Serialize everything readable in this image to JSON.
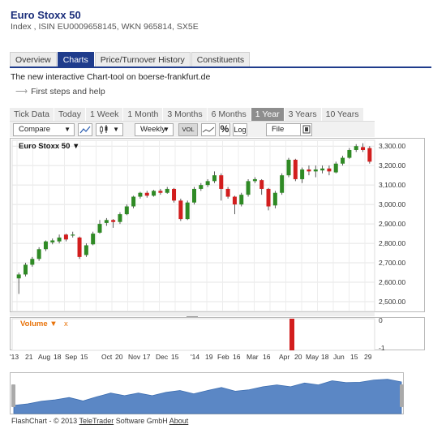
{
  "header": {
    "title": "Euro Stoxx 50",
    "subtitle": "Index , ISIN EU0009658145, WKN 965814, SX5E"
  },
  "tabs": [
    {
      "label": "Overview",
      "active": false
    },
    {
      "label": "Charts",
      "active": true
    },
    {
      "label": "Price/Turnover History",
      "active": false
    },
    {
      "label": "Constituents",
      "active": false
    }
  ],
  "promo_text": "The new interactive Chart-tool on boerse-frankfurt.de",
  "first_steps": "First steps and help",
  "ranges": [
    {
      "label": "Tick Data",
      "active": false
    },
    {
      "label": "Today",
      "active": false
    },
    {
      "label": "1 Week",
      "active": false
    },
    {
      "label": "1 Month",
      "active": false
    },
    {
      "label": "3 Months",
      "active": false
    },
    {
      "label": "6 Months",
      "active": false
    },
    {
      "label": "1 Year",
      "active": true
    },
    {
      "label": "3 Years",
      "active": false
    },
    {
      "label": "10 Years",
      "active": false
    }
  ],
  "toolbar": {
    "compare": "Compare",
    "interval": "Weekly",
    "vol": "VOL",
    "log": "Log",
    "file": "File",
    "percent": "%"
  },
  "colors": {
    "up": "#2f8a25",
    "down": "#d21e1e",
    "tab_active": "#1f3c8c",
    "volume_label": "#e8730a",
    "navigator_fill": "#5b87c5"
  },
  "chart_data": {
    "type": "candlestick",
    "title": "Euro Stoxx 50",
    "ylim": [
      2450,
      3330
    ],
    "yticks": [
      "3,300.00",
      "3,200.00",
      "3,100.00",
      "3,000.00",
      "2,900.00",
      "2,800.00",
      "2,700.00",
      "2,600.00",
      "2,500.00"
    ],
    "grid": true,
    "candles": [
      [
        2620,
        2640,
        2540,
        2650
      ],
      [
        2640,
        2690,
        2630,
        2700
      ],
      [
        2690,
        2720,
        2680,
        2730
      ],
      [
        2720,
        2770,
        2710,
        2780
      ],
      [
        2770,
        2810,
        2760,
        2815
      ],
      [
        2805,
        2815,
        2795,
        2825
      ],
      [
        2810,
        2830,
        2800,
        2845
      ],
      [
        2845,
        2820,
        2810,
        2850
      ],
      [
        2840,
        2845,
        2830,
        2860
      ],
      [
        2830,
        2730,
        2720,
        2835
      ],
      [
        2740,
        2790,
        2730,
        2800
      ],
      [
        2795,
        2850,
        2790,
        2860
      ],
      [
        2855,
        2900,
        2850,
        2920
      ],
      [
        2905,
        2920,
        2890,
        2930
      ],
      [
        2920,
        2910,
        2880,
        2925
      ],
      [
        2910,
        2950,
        2900,
        2960
      ],
      [
        2950,
        2990,
        2945,
        3000
      ],
      [
        2990,
        3040,
        2980,
        3045
      ],
      [
        3040,
        3060,
        3030,
        3065
      ],
      [
        3060,
        3045,
        3035,
        3070
      ],
      [
        3045,
        3070,
        3040,
        3075
      ],
      [
        3070,
        3060,
        3050,
        3080
      ],
      [
        3060,
        3080,
        3055,
        3090
      ],
      [
        3080,
        3020,
        3010,
        3085
      ],
      [
        3020,
        2925,
        2915,
        3030
      ],
      [
        2925,
        3010,
        2920,
        3020
      ],
      [
        3010,
        3080,
        3000,
        3090
      ],
      [
        3080,
        3100,
        3070,
        3110
      ],
      [
        3100,
        3120,
        3090,
        3130
      ],
      [
        3120,
        3150,
        3110,
        3170
      ],
      [
        3150,
        3080,
        3020,
        3160
      ],
      [
        3080,
        3040,
        3030,
        3090
      ],
      [
        3040,
        3000,
        2950,
        3045
      ],
      [
        3000,
        3050,
        2990,
        3060
      ],
      [
        3050,
        3120,
        3040,
        3130
      ],
      [
        3120,
        3130,
        3110,
        3140
      ],
      [
        3125,
        3080,
        3050,
        3130
      ],
      [
        3080,
        2990,
        2970,
        3085
      ],
      [
        2995,
        3060,
        2980,
        3070
      ],
      [
        3060,
        3150,
        3050,
        3160
      ],
      [
        3150,
        3230,
        3140,
        3240
      ],
      [
        3230,
        3130,
        3120,
        3235
      ],
      [
        3130,
        3180,
        3110,
        3190
      ],
      [
        3180,
        3170,
        3150,
        3200
      ],
      [
        3170,
        3180,
        3140,
        3200
      ],
      [
        3175,
        3185,
        3160,
        3200
      ],
      [
        3185,
        3170,
        3150,
        3200
      ],
      [
        3165,
        3210,
        3160,
        3220
      ],
      [
        3210,
        3240,
        3200,
        3250
      ],
      [
        3240,
        3280,
        3235,
        3290
      ],
      [
        3280,
        3300,
        3270,
        3310
      ],
      [
        3295,
        3280,
        3270,
        3315
      ],
      [
        3290,
        3220,
        3210,
        3300
      ]
    ],
    "volume": {
      "label": "Volume",
      "yticks": [
        "0",
        "-1"
      ]
    },
    "x_ticks": [
      "'13",
      "21",
      "Aug",
      "18",
      "Sep",
      "15",
      "Oct",
      "20",
      "Nov",
      "17",
      "Dec",
      "15",
      "'14",
      "19",
      "Feb",
      "16",
      "Mar",
      "16",
      "Apr",
      "20",
      "May",
      "18",
      "Jun",
      "15",
      "29"
    ],
    "navigator": [
      0.22,
      0.26,
      0.33,
      0.37,
      0.43,
      0.34,
      0.45,
      0.55,
      0.48,
      0.55,
      0.48,
      0.57,
      0.62,
      0.53,
      0.62,
      0.7,
      0.6,
      0.64,
      0.72,
      0.77,
      0.72,
      0.82,
      0.77,
      0.88,
      0.83,
      0.84,
      0.9,
      0.92,
      0.85
    ]
  },
  "footer": {
    "copyright": "FlashChart - © 2013",
    "company": "TeleTrader",
    "company_rest": "Software GmbH",
    "about": "About"
  }
}
